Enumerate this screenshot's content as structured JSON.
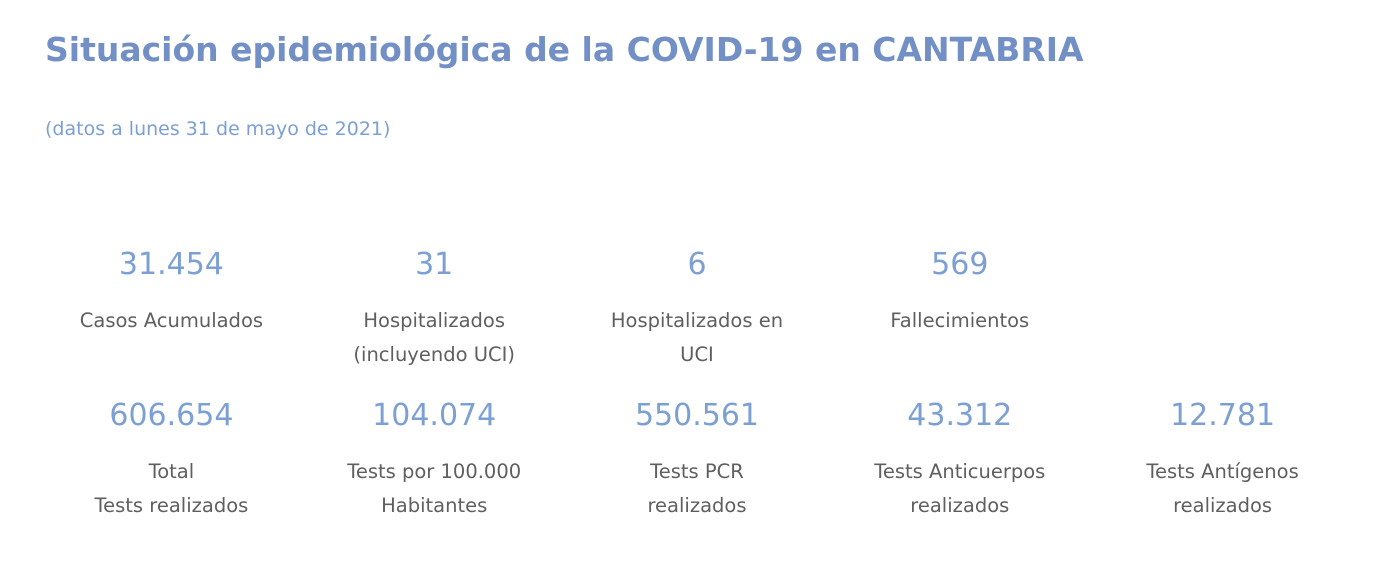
{
  "page": {
    "title": "Situación epidemiológica de la COVID-19 en CANTABRIA",
    "subtitle": "(datos a lunes 31 de mayo de 2021)"
  },
  "colors": {
    "title_blue": "#7390c6",
    "value_blue": "#7c9fd4",
    "label_gray": "#5f5f5f",
    "background": "#ffffff"
  },
  "stats": {
    "row1": [
      {
        "value": "31.454",
        "label_lines": [
          "Casos Acumulados"
        ]
      },
      {
        "value": "31",
        "label_lines": [
          "Hospitalizados",
          "(incluyendo UCI)"
        ]
      },
      {
        "value": "6",
        "label_lines": [
          "Hospitalizados en",
          "UCI"
        ]
      },
      {
        "value": "569",
        "label_lines": [
          "Fallecimientos"
        ]
      }
    ],
    "row2": [
      {
        "value": "606.654",
        "label_lines": [
          "Total",
          "Tests realizados"
        ]
      },
      {
        "value": "104.074",
        "label_lines": [
          "Tests por 100.000",
          "Habitantes"
        ]
      },
      {
        "value": "550.561",
        "label_lines": [
          "Tests PCR",
          "realizados"
        ]
      },
      {
        "value": "43.312",
        "label_lines": [
          "Tests Anticuerpos",
          "realizados"
        ]
      },
      {
        "value": "12.781",
        "label_lines": [
          "Tests Antígenos",
          "realizados"
        ]
      }
    ]
  }
}
